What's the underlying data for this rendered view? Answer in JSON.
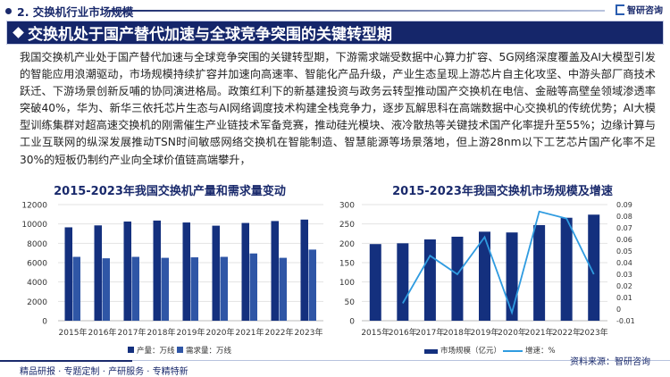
{
  "header": {
    "section": "2. 交换机行业市场规模",
    "logo": "智研咨询"
  },
  "title": "交换机处于国产替代加速与全球竞争突围的关键转型期",
  "paragraph": "我国交换机产业处于国产替代加速与全球竞争突围的关键转型期，下游需求端受数据中心算力扩容、5G网络深度覆盖及AI大模型引发的智能应用浪潮驱动，市场规模持续扩容并加速向高速率、智能化产品升级，产业生态呈现上游芯片自主化攻坚、中游头部厂商技术跃迁、下游场景创新反哺的协同演进格局。政策红利下的新基建投资与政务云转型推动国产交换机在电信、金融等高壁垒领域渗透率突破40%，华为、新华三依托芯片生态与AI网络调度技术构建全栈竞争力，逐步瓦解思科在高端数据中心交换机的传统优势；AI大模型训练集群对超高速交换机的刚需催生产业链技术军备竞赛，推动硅光模块、液冷散热等关键技术国产化率提升至55%；边缘计算与工业互联网的纵深发展推动TSN时间敏感网络交换机在智能制造、智慧能源等场景落地，但上游28nm以下工艺芯片国产化率不足30%的短板仍制约产业向全球价值链高端攀升，",
  "footer": {
    "slogan": "精品研报 · 专题定制 · 产研服务 · 专精特新",
    "source": "资料来源：智研咨询"
  },
  "chart_data": [
    {
      "type": "bar",
      "title": "2015-2023年我国交换机产量和需求量变动",
      "categories": [
        "2015年",
        "2016年",
        "2017年",
        "2018年",
        "2019年",
        "2020年",
        "2021年",
        "2022年",
        "2023年"
      ],
      "ylim": [
        0,
        12000
      ],
      "yticks": [
        0,
        2000,
        4000,
        6000,
        8000,
        10000,
        12000
      ],
      "grid": true,
      "legend": "bottom",
      "series": [
        {
          "name": "产量：万线",
          "color": "#14307e",
          "values": [
            9650,
            9850,
            10250,
            10350,
            10150,
            9820,
            10100,
            10300,
            10450
          ]
        },
        {
          "name": "需求量：万线",
          "color": "#2f56a6",
          "values": [
            6600,
            6450,
            6600,
            6500,
            6550,
            6600,
            6950,
            6500,
            7350
          ]
        }
      ]
    },
    {
      "type": "bar+line",
      "title": "2015-2023年我国交换机市场规模及增速",
      "categories": [
        "2015年",
        "2016年",
        "2017年",
        "2018年",
        "2019年",
        "2020年",
        "2021年",
        "2022年",
        "2023年"
      ],
      "ylim": [
        0,
        300
      ],
      "yticks": [
        0,
        50,
        100,
        150,
        200,
        250,
        300
      ],
      "y2lim": [
        -0.01,
        0.09
      ],
      "y2ticks": [
        "-0.01",
        "0",
        "0.01",
        "0.02",
        "0.03",
        "0.04",
        "0.05",
        "0.06",
        "0.07",
        "0.08",
        "0.09"
      ],
      "grid": true,
      "legend": "bottom",
      "series": [
        {
          "name": "市场规模（亿元）",
          "type": "bar",
          "axis": "left",
          "color": "#14307e",
          "values": [
            198,
            200,
            210,
            217,
            230,
            228,
            247,
            266,
            274
          ]
        },
        {
          "name": "增速：%",
          "type": "line",
          "axis": "right",
          "color": "#2f9be0",
          "values": [
            null,
            0.005,
            0.046,
            0.03,
            0.062,
            -0.003,
            0.084,
            0.078,
            0.03
          ]
        }
      ]
    }
  ]
}
